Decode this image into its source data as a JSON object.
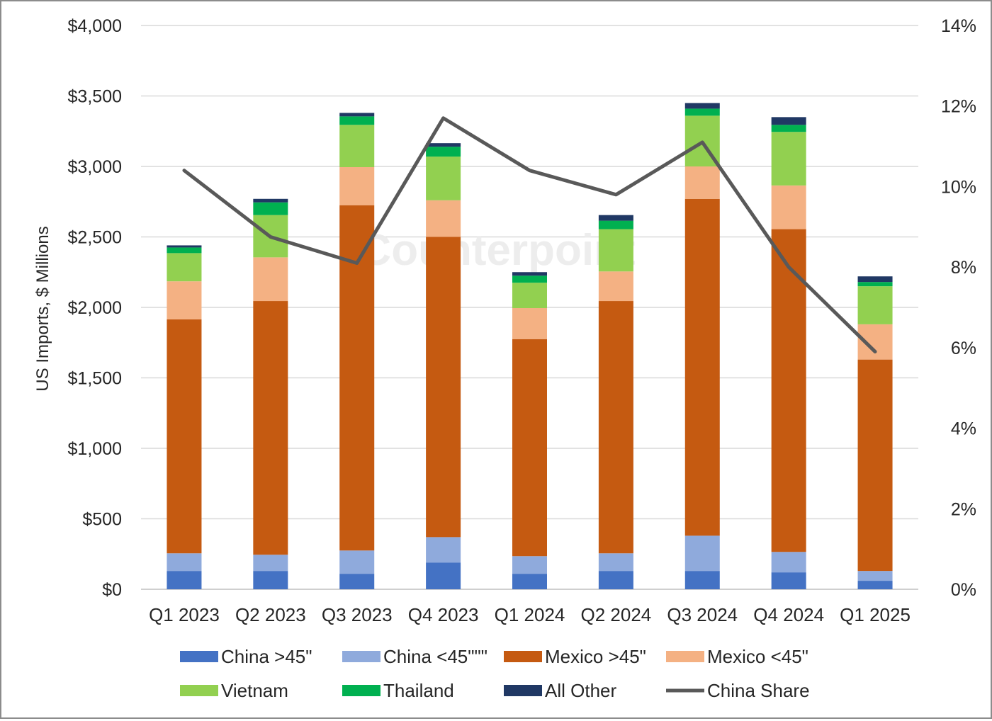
{
  "chart_data": {
    "type": "bar",
    "stacked": true,
    "categories": [
      "Q1 2023",
      "Q2 2023",
      "Q3 2023",
      "Q4 2023",
      "Q1 2024",
      "Q2 2024",
      "Q3 2024",
      "Q4 2024",
      "Q1 2025"
    ],
    "ylabel": "US Imports, $ Millions",
    "ylim": [
      0,
      4000
    ],
    "y_ticks": [
      "$0",
      "$500",
      "$1,000",
      "$1,500",
      "$2,000",
      "$2,500",
      "$3,000",
      "$3,500",
      "$4,000"
    ],
    "y2lim": [
      0,
      14
    ],
    "y2_ticks": [
      "0%",
      "2%",
      "4%",
      "6%",
      "8%",
      "10%",
      "12%",
      "14%"
    ],
    "series": [
      {
        "name": "China >45\"",
        "color": "#4472c4",
        "values": [
          130,
          130,
          110,
          190,
          110,
          130,
          130,
          120,
          60
        ]
      },
      {
        "name": "China <45\"\"\"",
        "color": "#8faadc",
        "values": [
          125,
          115,
          165,
          180,
          125,
          125,
          250,
          145,
          70
        ]
      },
      {
        "name": "Mexico >45\"",
        "color": "#c55a11",
        "values": [
          1660,
          1800,
          2450,
          2130,
          1540,
          1790,
          2390,
          2290,
          1500
        ]
      },
      {
        "name": "Mexico <45\"",
        "color": "#f4b183",
        "values": [
          270,
          310,
          270,
          260,
          220,
          210,
          230,
          310,
          250
        ]
      },
      {
        "name": "Vietnam",
        "color": "#92d050",
        "values": [
          200,
          300,
          300,
          310,
          180,
          300,
          360,
          380,
          270
        ]
      },
      {
        "name": "Thailand",
        "color": "#00b050",
        "values": [
          40,
          90,
          60,
          70,
          50,
          60,
          50,
          50,
          30
        ]
      },
      {
        "name": "All Other",
        "color": "#203864",
        "values": [
          15,
          25,
          25,
          25,
          25,
          40,
          40,
          55,
          40
        ]
      }
    ],
    "line_series": {
      "name": "China Share",
      "color": "#595959",
      "axis": "right",
      "values": [
        10.4,
        8.75,
        8.1,
        11.7,
        10.4,
        9.8,
        11.1,
        8.0,
        5.9
      ]
    },
    "grid": true,
    "legend_position": "bottom"
  },
  "watermark": "Counterpoint"
}
